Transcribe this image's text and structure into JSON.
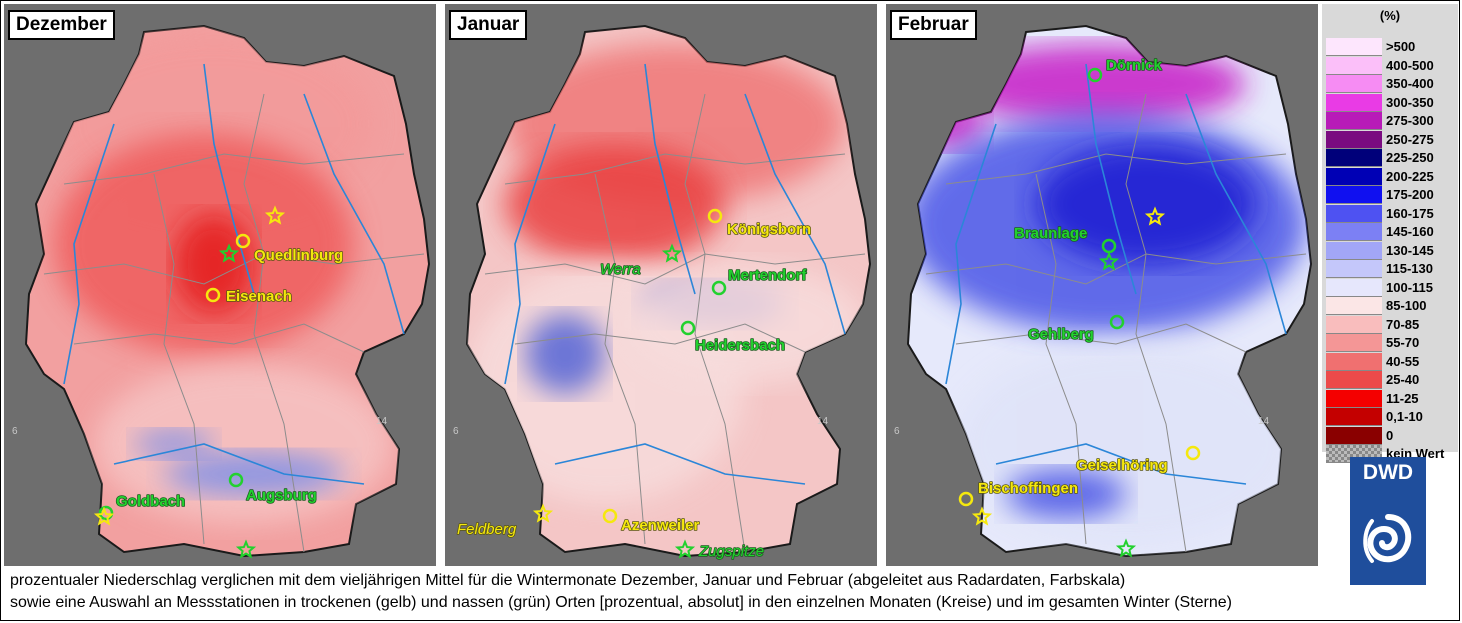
{
  "panels": [
    {
      "month": "Dezember",
      "field": {
        "base": "#f2a0a0",
        "mid": "#ef5b5b",
        "core": "#e41a1a",
        "north": "#f39a9a",
        "south": "#f6c4c4",
        "wet": "#7d8fe8"
      },
      "stations": [
        {
          "name": "Quedlinburg",
          "kind": "dry",
          "marker": "circle"
        },
        {
          "name": "Eisenach",
          "kind": "dry",
          "marker": "circle"
        },
        {
          "name": "Goldbach",
          "kind": "wet",
          "marker": "circle"
        },
        {
          "name": "Augsburg",
          "kind": "wet",
          "marker": "circle"
        }
      ],
      "stars": [
        {
          "kind": "dry"
        },
        {
          "kind": "wet"
        },
        {
          "kind": "dry"
        },
        {
          "kind": "wet"
        }
      ],
      "ticks": [
        "6",
        "14"
      ]
    },
    {
      "month": "Januar",
      "field": {
        "base": "#f4c6c6",
        "mid": "#ef7a7a",
        "core": "#e94040",
        "north": "#ef7777",
        "south": "#f7dcdc",
        "wet": "#5565d6"
      },
      "stations": [
        {
          "name": "Königsborn",
          "kind": "dry",
          "marker": "circle"
        },
        {
          "name": "Mertendorf",
          "kind": "wet",
          "marker": "circle"
        },
        {
          "name": "Heidersbach",
          "kind": "wet",
          "marker": "circle"
        },
        {
          "name": "Azenweiler",
          "kind": "dry",
          "marker": "circle"
        },
        {
          "name": "Werra",
          "kind": "wet",
          "marker": "star"
        },
        {
          "name": "Feldberg",
          "kind": "dry",
          "marker": "star"
        },
        {
          "name": "Zugspitze",
          "kind": "wet",
          "marker": "star"
        }
      ],
      "stars": [],
      "ticks": [
        "6",
        "14"
      ]
    },
    {
      "month": "Februar",
      "field": {
        "base": "#e6e9fb",
        "mid": "#4a55e6",
        "core": "#1a1fd1",
        "north": "#c61ec6",
        "south": "#dfe3f8",
        "wet": "#2a33d8"
      },
      "stations": [
        {
          "name": "Dörnick",
          "kind": "wet",
          "marker": "circle"
        },
        {
          "name": "Braunlage",
          "kind": "wet",
          "marker": "circle"
        },
        {
          "name": "Gehlberg",
          "kind": "wet",
          "marker": "circle"
        },
        {
          "name": "Geiselhöring",
          "kind": "dry",
          "marker": "circle"
        },
        {
          "name": "Bischoffingen",
          "kind": "dry",
          "marker": "circle"
        }
      ],
      "stars": [
        {
          "kind": "dry"
        },
        {
          "kind": "wet"
        },
        {
          "kind": "dry"
        },
        {
          "kind": "wet"
        }
      ],
      "ticks": [
        "6",
        "14"
      ]
    }
  ],
  "legend": {
    "unit": "(%)",
    "classes": [
      {
        "label": ">500",
        "color": "#fde6fd"
      },
      {
        "label": "400-500",
        "color": "#fbbff9"
      },
      {
        "label": "350-400",
        "color": "#f68cf3"
      },
      {
        "label": "300-350",
        "color": "#e93be5"
      },
      {
        "label": "275-300",
        "color": "#b81bb8"
      },
      {
        "label": "250-275",
        "color": "#7a0b80"
      },
      {
        "label": "225-250",
        "color": "#00007a"
      },
      {
        "label": "200-225",
        "color": "#0000b5"
      },
      {
        "label": "175-200",
        "color": "#1010f0"
      },
      {
        "label": "160-175",
        "color": "#4e52f2"
      },
      {
        "label": "145-160",
        "color": "#7c80f4"
      },
      {
        "label": "130-145",
        "color": "#a2a6f7"
      },
      {
        "label": "115-130",
        "color": "#c4c7fa"
      },
      {
        "label": "100-115",
        "color": "#e6e7fc"
      },
      {
        "label": "85-100",
        "color": "#fbe6e6"
      },
      {
        "label": "70-85",
        "color": "#f9bdbd"
      },
      {
        "label": "55-70",
        "color": "#f49696"
      },
      {
        "label": "40-55",
        "color": "#f07070"
      },
      {
        "label": "25-40",
        "color": "#ec4a4a"
      },
      {
        "label": "11-25",
        "color": "#f40000"
      },
      {
        "label": "0,1-10",
        "color": "#c40000"
      },
      {
        "label": "0",
        "color": "#8a0000"
      },
      {
        "label": "kein Wert",
        "color": "#9a9a9a"
      }
    ]
  },
  "logo": {
    "text": "DWD",
    "color": "#1f4e9c"
  },
  "caption": {
    "line1": "prozentualer Niederschlag verglichen mit dem vieljährigen Mittel für die Wintermonate Dezember, Januar und Februar (abgeleitet aus Radardaten, Farbskala)",
    "line2": "sowie eine Auswahl an Messstationen in trockenen (gelb) und nassen (grün) Orten [prozentual, absolut] in den einzelnen Monaten (Kreise) und im gesamten Winter (Sterne)"
  }
}
